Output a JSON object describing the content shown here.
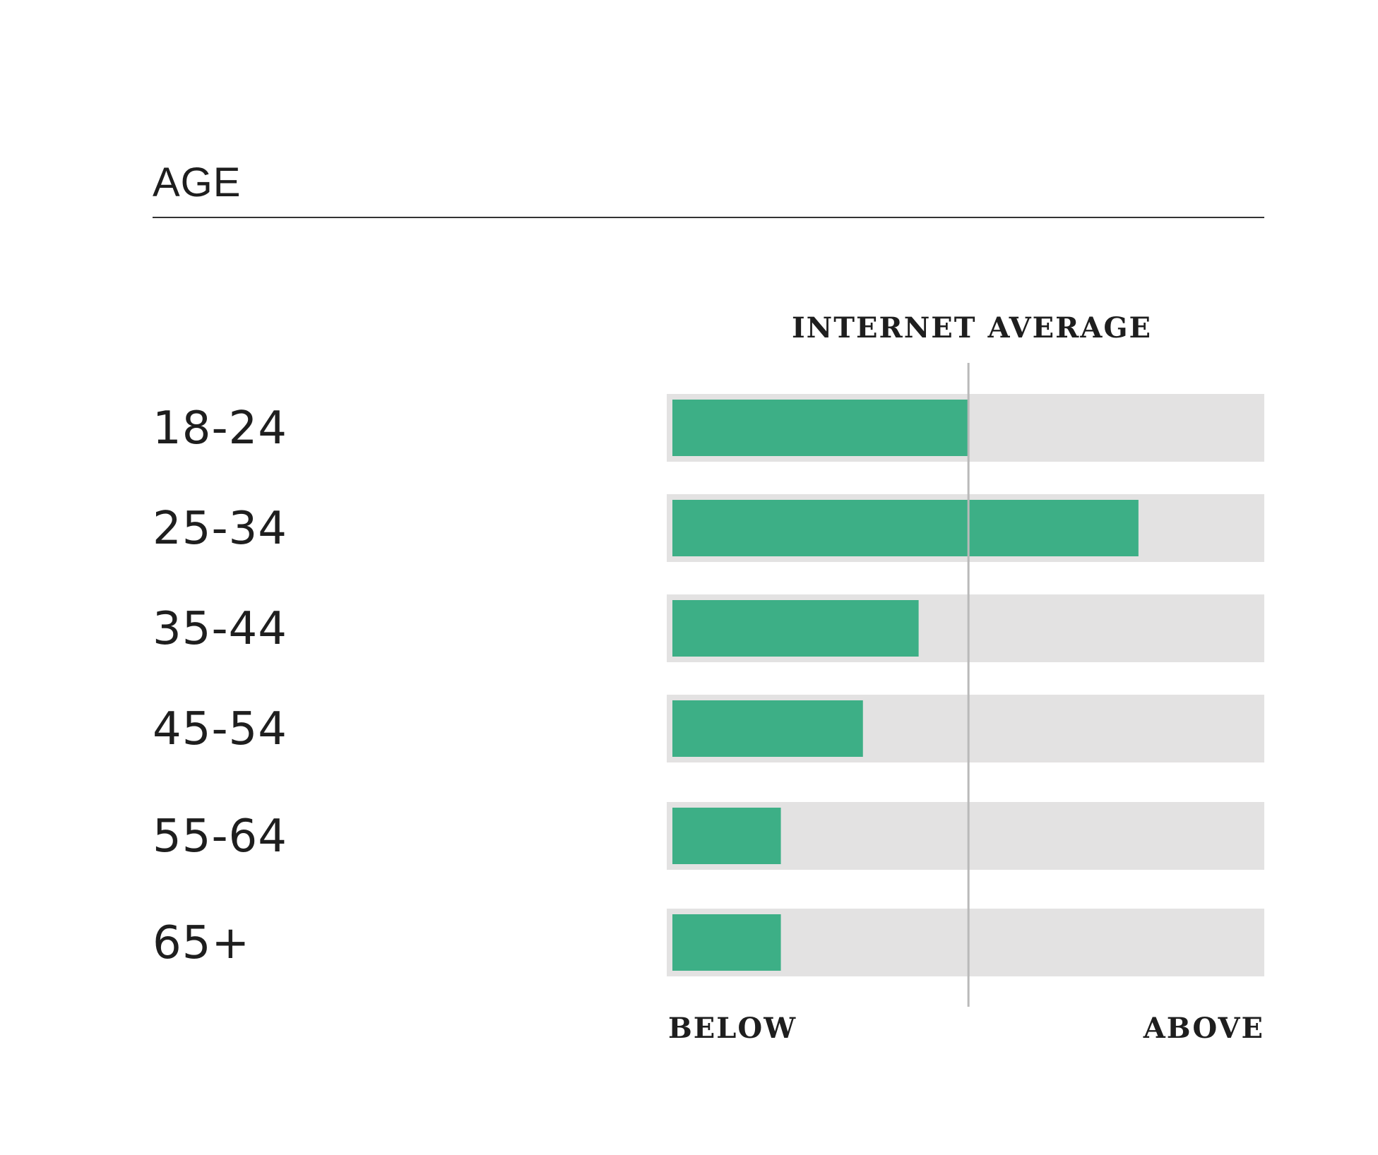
{
  "chart_data": {
    "type": "bar",
    "orientation": "horizontal",
    "title": "AGE",
    "categories": [
      "18-24",
      "25-34",
      "35-44",
      "45-54",
      "55-64",
      "65+"
    ],
    "values": [
      0.505,
      0.795,
      0.42,
      0.325,
      0.185,
      0.185
    ],
    "xlim": [
      0,
      1
    ],
    "reference_line": {
      "label": "INTERNET AVERAGE",
      "value": 0.505
    },
    "axis_min_label": "BELOW",
    "axis_max_label": "ABOVE",
    "grid": false,
    "legend": "none",
    "colors": {
      "bar": "#3daf86",
      "track": "#e3e2e2",
      "reference": "#b9b9b9",
      "rule": "#333333",
      "text": "#1e1e1e"
    }
  }
}
